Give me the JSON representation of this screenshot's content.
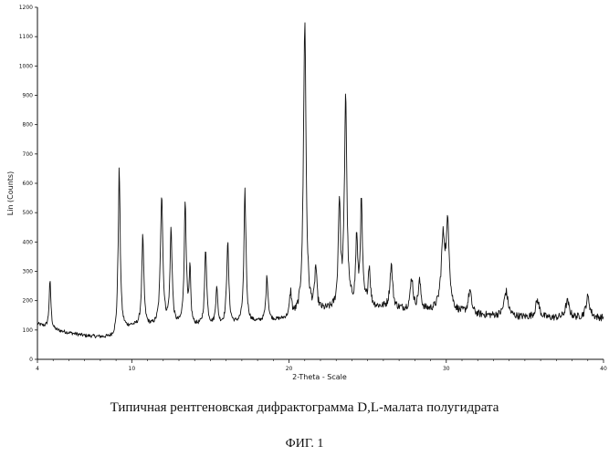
{
  "chart_data": {
    "type": "line",
    "xlabel": "2-Theta - Scale",
    "ylabel": "Lin (Counts)",
    "xlim": [
      4,
      40
    ],
    "ylim": [
      0,
      1200
    ],
    "x_ticks": [
      4,
      10,
      20,
      30,
      40
    ],
    "y_ticks": [
      0,
      100,
      200,
      300,
      400,
      500,
      600,
      700,
      800,
      900,
      1000,
      1100,
      1200
    ],
    "grid": false,
    "baseline": [
      [
        4,
        120
      ],
      [
        5,
        100
      ],
      [
        6,
        90
      ],
      [
        7,
        80
      ],
      [
        8,
        75
      ],
      [
        9,
        70
      ],
      [
        9.5,
        100
      ],
      [
        10,
        110
      ],
      [
        12,
        110
      ],
      [
        14,
        110
      ],
      [
        16,
        115
      ],
      [
        18,
        125
      ],
      [
        20,
        135
      ],
      [
        22,
        160
      ],
      [
        24,
        175
      ],
      [
        26,
        175
      ],
      [
        28,
        165
      ],
      [
        30,
        160
      ],
      [
        32,
        150
      ],
      [
        34,
        145
      ],
      [
        36,
        140
      ],
      [
        38,
        140
      ],
      [
        40,
        140
      ]
    ],
    "peaks": [
      {
        "x": 4.8,
        "y": 260,
        "w": 0.07
      },
      {
        "x": 9.2,
        "y": 640,
        "w": 0.08
      },
      {
        "x": 10.7,
        "y": 410,
        "w": 0.08
      },
      {
        "x": 11.9,
        "y": 565,
        "w": 0.09
      },
      {
        "x": 12.5,
        "y": 435,
        "w": 0.08
      },
      {
        "x": 13.4,
        "y": 530,
        "w": 0.08
      },
      {
        "x": 13.7,
        "y": 290,
        "w": 0.06
      },
      {
        "x": 14.7,
        "y": 370,
        "w": 0.08
      },
      {
        "x": 15.4,
        "y": 245,
        "w": 0.07
      },
      {
        "x": 16.1,
        "y": 395,
        "w": 0.08
      },
      {
        "x": 17.2,
        "y": 560,
        "w": 0.08
      },
      {
        "x": 18.6,
        "y": 280,
        "w": 0.08
      },
      {
        "x": 20.1,
        "y": 220,
        "w": 0.08
      },
      {
        "x": 21.0,
        "y": 1140,
        "w": 0.1
      },
      {
        "x": 21.7,
        "y": 300,
        "w": 0.08
      },
      {
        "x": 23.2,
        "y": 530,
        "w": 0.08
      },
      {
        "x": 23.6,
        "y": 900,
        "w": 0.09
      },
      {
        "x": 24.3,
        "y": 405,
        "w": 0.07
      },
      {
        "x": 24.6,
        "y": 520,
        "w": 0.08
      },
      {
        "x": 25.1,
        "y": 310,
        "w": 0.08
      },
      {
        "x": 26.5,
        "y": 320,
        "w": 0.1
      },
      {
        "x": 27.8,
        "y": 275,
        "w": 0.1
      },
      {
        "x": 28.3,
        "y": 260,
        "w": 0.1
      },
      {
        "x": 29.8,
        "y": 395,
        "w": 0.15
      },
      {
        "x": 30.1,
        "y": 430,
        "w": 0.12
      },
      {
        "x": 31.5,
        "y": 230,
        "w": 0.12
      },
      {
        "x": 33.8,
        "y": 230,
        "w": 0.15
      },
      {
        "x": 35.8,
        "y": 200,
        "w": 0.15
      },
      {
        "x": 37.7,
        "y": 195,
        "w": 0.15
      },
      {
        "x": 39.0,
        "y": 210,
        "w": 0.15
      }
    ]
  },
  "caption": "Типичная рентгеновская дифрактограмма D,L-малата полугидрата",
  "figure_label": "ФИГ. 1"
}
